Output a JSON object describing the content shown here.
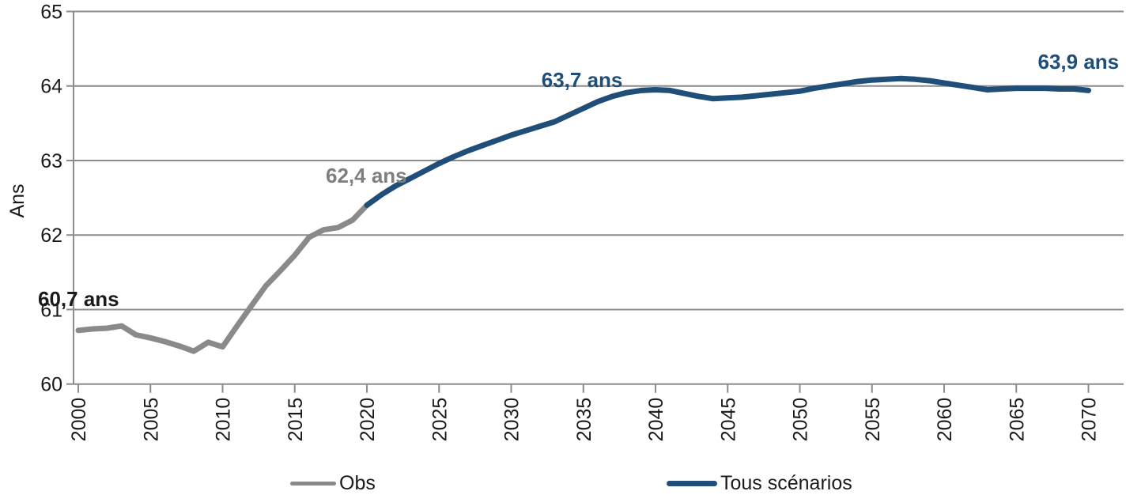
{
  "chart_data": {
    "type": "line",
    "title": "",
    "xlabel": "",
    "ylabel": "Ans",
    "xlim": [
      2000,
      2070
    ],
    "ylim": [
      60,
      65
    ],
    "yticks": [
      60,
      61,
      62,
      63,
      64,
      65
    ],
    "xticks": [
      2000,
      2005,
      2010,
      2015,
      2020,
      2025,
      2030,
      2035,
      2040,
      2045,
      2050,
      2055,
      2060,
      2065,
      2070
    ],
    "grid": "horizontal",
    "grid_color": "#8c8c8c",
    "axis_text_color": "#1a1a1a",
    "legend_position": "bottom",
    "series": [
      {
        "name": "Obs",
        "color": "#8a8a8a",
        "points": [
          [
            2000,
            60.72
          ],
          [
            2001,
            60.74
          ],
          [
            2002,
            60.75
          ],
          [
            2003,
            60.78
          ],
          [
            2004,
            60.66
          ],
          [
            2005,
            60.62
          ],
          [
            2006,
            60.57
          ],
          [
            2007,
            60.51
          ],
          [
            2008,
            60.44
          ],
          [
            2009,
            60.56
          ],
          [
            2010,
            60.5
          ],
          [
            2011,
            60.78
          ],
          [
            2012,
            61.05
          ],
          [
            2013,
            61.32
          ],
          [
            2014,
            61.52
          ],
          [
            2015,
            61.73
          ],
          [
            2016,
            61.97
          ],
          [
            2017,
            62.07
          ],
          [
            2018,
            62.1
          ],
          [
            2019,
            62.2
          ],
          [
            2020,
            62.4
          ]
        ]
      },
      {
        "name": "Tous scénarios",
        "color": "#1f4e79",
        "points": [
          [
            2020,
            62.4
          ],
          [
            2021,
            62.54
          ],
          [
            2022,
            62.66
          ],
          [
            2023,
            62.76
          ],
          [
            2024,
            62.86
          ],
          [
            2025,
            62.96
          ],
          [
            2026,
            63.05
          ],
          [
            2027,
            63.13
          ],
          [
            2028,
            63.2
          ],
          [
            2029,
            63.27
          ],
          [
            2030,
            63.34
          ],
          [
            2031,
            63.4
          ],
          [
            2032,
            63.46
          ],
          [
            2033,
            63.52
          ],
          [
            2034,
            63.61
          ],
          [
            2035,
            63.7
          ],
          [
            2036,
            63.79
          ],
          [
            2037,
            63.86
          ],
          [
            2038,
            63.91
          ],
          [
            2039,
            63.94
          ],
          [
            2040,
            63.95
          ],
          [
            2041,
            63.94
          ],
          [
            2042,
            63.9
          ],
          [
            2043,
            63.86
          ],
          [
            2044,
            63.83
          ],
          [
            2045,
            63.84
          ],
          [
            2046,
            63.85
          ],
          [
            2047,
            63.87
          ],
          [
            2048,
            63.89
          ],
          [
            2049,
            63.91
          ],
          [
            2050,
            63.93
          ],
          [
            2051,
            63.97
          ],
          [
            2052,
            64.0
          ],
          [
            2053,
            64.03
          ],
          [
            2054,
            64.06
          ],
          [
            2055,
            64.08
          ],
          [
            2056,
            64.09
          ],
          [
            2057,
            64.1
          ],
          [
            2058,
            64.09
          ],
          [
            2059,
            64.07
          ],
          [
            2060,
            64.04
          ],
          [
            2061,
            64.01
          ],
          [
            2062,
            63.98
          ],
          [
            2063,
            63.95
          ],
          [
            2064,
            63.96
          ],
          [
            2065,
            63.97
          ],
          [
            2066,
            63.97
          ],
          [
            2067,
            63.97
          ],
          [
            2068,
            63.96
          ],
          [
            2069,
            63.96
          ],
          [
            2070,
            63.94
          ]
        ]
      }
    ],
    "annotations": [
      {
        "text": "60,7 ans",
        "x": 2000,
        "y": 60.72,
        "color": "#1a1a1a"
      },
      {
        "text": "62,4 ans",
        "x": 2020,
        "y": 62.4,
        "color": "#7f7f7f"
      },
      {
        "text": "63,7 ans",
        "x": 2035,
        "y": 63.7,
        "color": "#1f4e79"
      },
      {
        "text": "63,9 ans",
        "x": 2070,
        "y": 63.94,
        "color": "#1f4e79"
      }
    ]
  }
}
